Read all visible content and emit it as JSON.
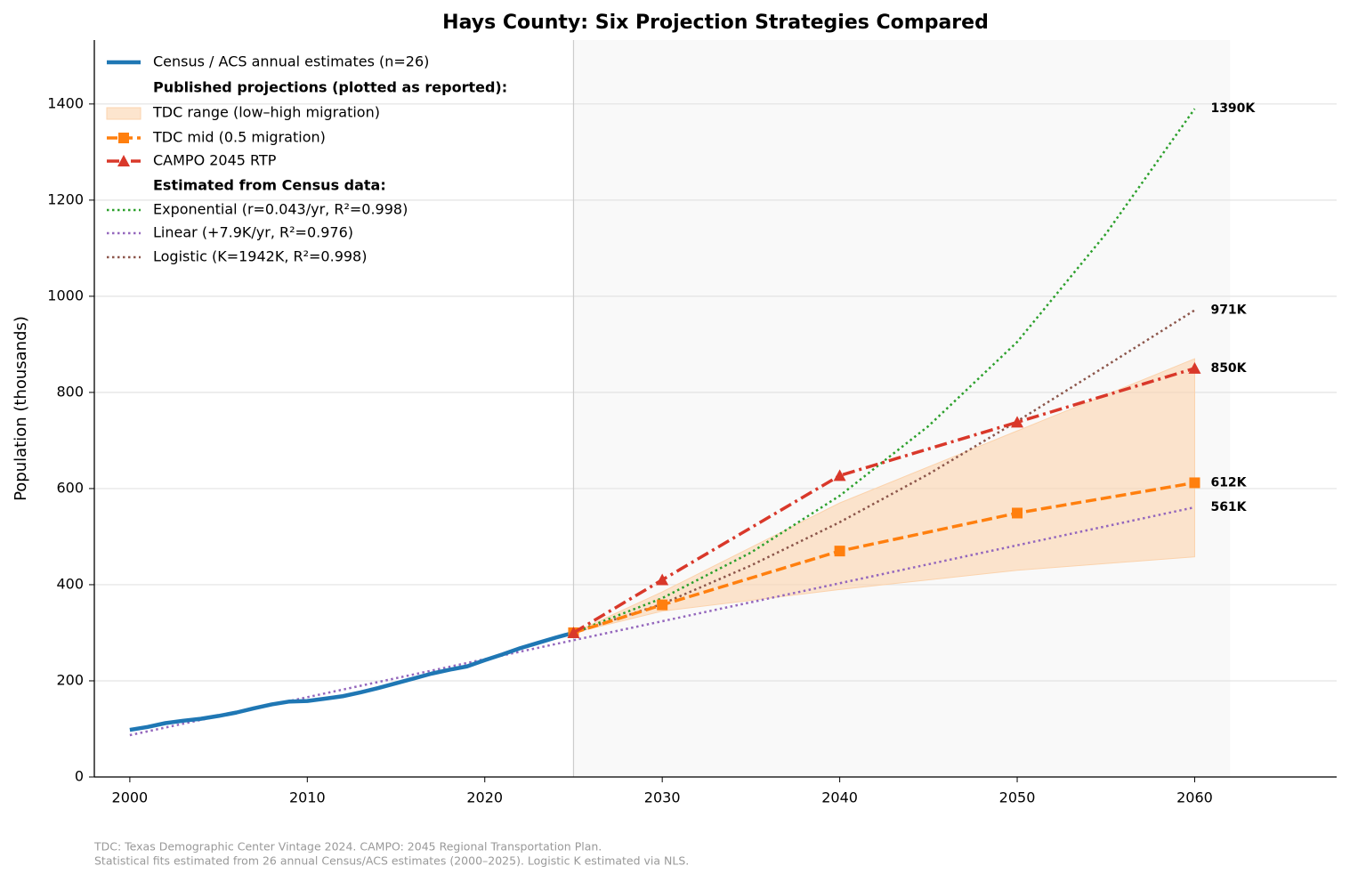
{
  "chart_data": {
    "type": "line",
    "title": "Hays County: Six Projection Strategies Compared",
    "y_label": "Population (thousands)",
    "xlim": [
      1998,
      2068
    ],
    "ylim": [
      0,
      1533
    ],
    "xticks": [
      2000,
      2010,
      2020,
      2030,
      2040,
      2050,
      2060
    ],
    "yticks": [
      0,
      200,
      400,
      600,
      800,
      1000,
      1200,
      1400
    ],
    "grid": true,
    "legend_position": "upper left",
    "projection_region": [
      2025,
      2062
    ],
    "legend_headers": [
      "Published projections (plotted as reported):",
      "Estimated from Census data:"
    ],
    "band": {
      "name": "TDC range (low–high migration)",
      "color": "#fbd3ad",
      "x": [
        2025,
        2030,
        2040,
        2050,
        2060
      ],
      "low": [
        300,
        345,
        390,
        430,
        458
      ],
      "high": [
        300,
        385,
        570,
        720,
        870
      ]
    },
    "series": [
      {
        "name": "Census / ACS annual estimates (n=26)",
        "color": "#1f77b4",
        "style": "solid",
        "width": 4.5,
        "x": [
          2000,
          2001,
          2002,
          2003,
          2004,
          2005,
          2006,
          2007,
          2008,
          2009,
          2010,
          2011,
          2012,
          2013,
          2014,
          2015,
          2016,
          2017,
          2018,
          2019,
          2020,
          2021,
          2022,
          2023,
          2024,
          2025
        ],
        "values": [
          98,
          104,
          112,
          117,
          121,
          127,
          134,
          143,
          151,
          157,
          158,
          163,
          168,
          176,
          185,
          195,
          205,
          215,
          223,
          230,
          243,
          255,
          268,
          279,
          290,
          300
        ]
      },
      {
        "name": "TDC mid (0.5 migration)",
        "color": "#ff7f0e",
        "style": "dashed",
        "width": 3.5,
        "marker": "square",
        "x": [
          2025,
          2030,
          2040,
          2050,
          2060
        ],
        "values": [
          300,
          358,
          470,
          549,
          612
        ],
        "end_label": "612K"
      },
      {
        "name": "CAMPO 2045 RTP",
        "color": "#d9382a",
        "style": "dashdot",
        "width": 3.5,
        "marker": "triangle",
        "x": [
          2025,
          2030,
          2040,
          2050,
          2060
        ],
        "values": [
          300,
          410,
          627,
          738,
          850
        ],
        "end_label": "850K"
      },
      {
        "name": "Exponential (r=0.043/yr, R²=0.998)",
        "color": "#2ca02c",
        "style": "dotted",
        "width": 2.5,
        "x": [
          2025,
          2030,
          2035,
          2040,
          2045,
          2050,
          2055,
          2060
        ],
        "values": [
          300,
          372,
          467,
          585,
          730,
          905,
          1130,
          1390
        ],
        "end_label": "1390K"
      },
      {
        "name": "Linear (+7.9K/yr, R²=0.976)",
        "color": "#9467bd",
        "style": "dotted",
        "width": 2.5,
        "x": [
          2000,
          2060
        ],
        "values": [
          87,
          561
        ],
        "end_label": "561K"
      },
      {
        "name": "Logistic (K=1942K, R²=0.998)",
        "color": "#8c564b",
        "style": "dotted",
        "width": 2.5,
        "x": [
          2025,
          2030,
          2035,
          2040,
          2045,
          2050,
          2055,
          2060
        ],
        "values": [
          300,
          360,
          440,
          530,
          630,
          740,
          855,
          971
        ],
        "end_label": "971K"
      }
    ],
    "footnotes": [
      "TDC: Texas Demographic Center Vintage 2024. CAMPO: 2045 Regional Transportation Plan.",
      "Statistical fits estimated from 26 annual Census/ACS estimates (2000–2025). Logistic K estimated via NLS."
    ]
  }
}
